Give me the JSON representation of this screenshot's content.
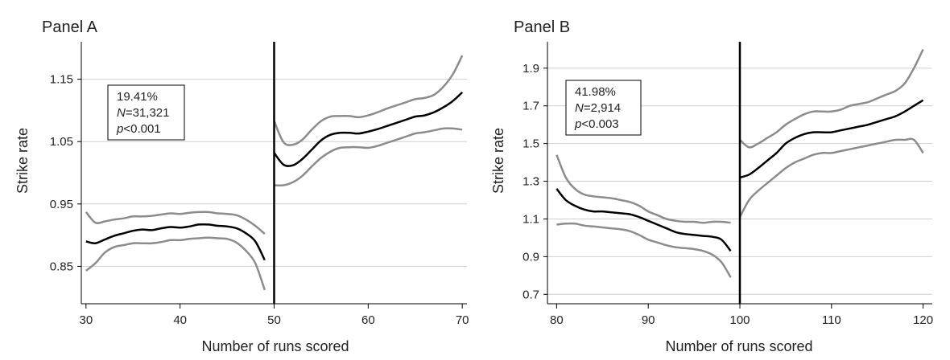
{
  "chart_data": [
    {
      "type": "line",
      "title": "Panel A",
      "xlabel": "Number of runs scored",
      "ylabel": "Strike rate",
      "xlim": [
        29.5,
        70.5
      ],
      "ylim": [
        0.79,
        1.21
      ],
      "xticks": [
        30,
        40,
        50,
        60,
        70
      ],
      "yticks": [
        0.85,
        0.95,
        1.05,
        1.15
      ],
      "ytick_labels": [
        "0.85",
        "0.95",
        "1.05",
        "1.15"
      ],
      "grid": "horizontal",
      "threshold": 50,
      "stats": {
        "estimate": "19.41%",
        "n_label": "N",
        "n_value": "=31,321",
        "p_label": "p",
        "p_value": "<0.001"
      },
      "colors": {
        "estimate": "#000000",
        "bounds": "#8c8c8c",
        "grid": "#cfcfcf"
      },
      "segments": [
        {
          "estimate": [
            [
              30,
              0.89
            ],
            [
              31,
              0.887
            ],
            [
              32,
              0.893
            ],
            [
              33,
              0.899
            ],
            [
              34,
              0.903
            ],
            [
              35,
              0.907
            ],
            [
              36,
              0.909
            ],
            [
              37,
              0.908
            ],
            [
              38,
              0.911
            ],
            [
              39,
              0.913
            ],
            [
              40,
              0.912
            ],
            [
              41,
              0.914
            ],
            [
              42,
              0.917
            ],
            [
              43,
              0.917
            ],
            [
              44,
              0.915
            ],
            [
              45,
              0.914
            ],
            [
              46,
              0.911
            ],
            [
              47,
              0.903
            ],
            [
              48,
              0.89
            ],
            [
              49,
              0.86
            ]
          ],
          "upper": [
            [
              30,
              0.937
            ],
            [
              31,
              0.92
            ],
            [
              32,
              0.922
            ],
            [
              33,
              0.925
            ],
            [
              34,
              0.927
            ],
            [
              35,
              0.93
            ],
            [
              36,
              0.93
            ],
            [
              37,
              0.931
            ],
            [
              38,
              0.933
            ],
            [
              39,
              0.935
            ],
            [
              40,
              0.934
            ],
            [
              41,
              0.936
            ],
            [
              42,
              0.937
            ],
            [
              43,
              0.937
            ],
            [
              44,
              0.935
            ],
            [
              45,
              0.934
            ],
            [
              46,
              0.932
            ],
            [
              47,
              0.925
            ],
            [
              48,
              0.915
            ],
            [
              49,
              0.902
            ]
          ],
          "lower": [
            [
              30,
              0.843
            ],
            [
              31,
              0.855
            ],
            [
              32,
              0.872
            ],
            [
              33,
              0.881
            ],
            [
              34,
              0.884
            ],
            [
              35,
              0.887
            ],
            [
              36,
              0.887
            ],
            [
              37,
              0.887
            ],
            [
              38,
              0.889
            ],
            [
              39,
              0.892
            ],
            [
              40,
              0.892
            ],
            [
              41,
              0.894
            ],
            [
              42,
              0.895
            ],
            [
              43,
              0.896
            ],
            [
              44,
              0.895
            ],
            [
              45,
              0.894
            ],
            [
              46,
              0.888
            ],
            [
              47,
              0.875
            ],
            [
              48,
              0.855
            ],
            [
              49,
              0.812
            ]
          ]
        },
        {
          "estimate": [
            [
              50,
              1.032
            ],
            [
              51,
              1.013
            ],
            [
              52,
              1.012
            ],
            [
              53,
              1.022
            ],
            [
              54,
              1.037
            ],
            [
              55,
              1.052
            ],
            [
              56,
              1.061
            ],
            [
              57,
              1.064
            ],
            [
              58,
              1.064
            ],
            [
              59,
              1.063
            ],
            [
              60,
              1.066
            ],
            [
              61,
              1.07
            ],
            [
              62,
              1.075
            ],
            [
              63,
              1.08
            ],
            [
              64,
              1.085
            ],
            [
              65,
              1.09
            ],
            [
              66,
              1.092
            ],
            [
              67,
              1.097
            ],
            [
              68,
              1.105
            ],
            [
              69,
              1.115
            ],
            [
              70,
              1.129
            ]
          ],
          "upper": [
            [
              50,
              1.083
            ],
            [
              51,
              1.049
            ],
            [
              52,
              1.045
            ],
            [
              53,
              1.053
            ],
            [
              54,
              1.069
            ],
            [
              55,
              1.083
            ],
            [
              56,
              1.09
            ],
            [
              57,
              1.091
            ],
            [
              58,
              1.091
            ],
            [
              59,
              1.089
            ],
            [
              60,
              1.092
            ],
            [
              61,
              1.097
            ],
            [
              62,
              1.103
            ],
            [
              63,
              1.108
            ],
            [
              64,
              1.113
            ],
            [
              65,
              1.118
            ],
            [
              66,
              1.12
            ],
            [
              67,
              1.125
            ],
            [
              68,
              1.138
            ],
            [
              69,
              1.158
            ],
            [
              70,
              1.188
            ]
          ],
          "lower": [
            [
              50,
              0.98
            ],
            [
              51,
              0.98
            ],
            [
              52,
              0.985
            ],
            [
              53,
              0.995
            ],
            [
              54,
              1.01
            ],
            [
              55,
              1.024
            ],
            [
              56,
              1.034
            ],
            [
              57,
              1.04
            ],
            [
              58,
              1.041
            ],
            [
              59,
              1.041
            ],
            [
              60,
              1.04
            ],
            [
              61,
              1.043
            ],
            [
              62,
              1.048
            ],
            [
              63,
              1.053
            ],
            [
              64,
              1.058
            ],
            [
              65,
              1.063
            ],
            [
              66,
              1.065
            ],
            [
              67,
              1.068
            ],
            [
              68,
              1.071
            ],
            [
              69,
              1.071
            ],
            [
              70,
              1.069
            ]
          ]
        }
      ]
    },
    {
      "type": "line",
      "title": "Panel B",
      "xlabel": "Number of runs scored",
      "ylabel": "Strike rate",
      "xlim": [
        79,
        121
      ],
      "ylim": [
        0.65,
        2.04
      ],
      "xticks": [
        80,
        90,
        100,
        110,
        120
      ],
      "yticks": [
        0.7,
        0.9,
        1.1,
        1.3,
        1.5,
        1.7,
        1.9
      ],
      "ytick_labels": [
        "0.7",
        "0.9",
        "1.1",
        "1.3",
        "1.5",
        "1.7",
        "1.9"
      ],
      "grid": "horizontal",
      "threshold": 100,
      "stats": {
        "estimate": "41.98%",
        "n_label": "N",
        "n_value": "=2,914",
        "p_label": "p",
        "p_value": "<0.003"
      },
      "colors": {
        "estimate": "#000000",
        "bounds": "#8c8c8c",
        "grid": "#cfcfcf"
      },
      "segments": [
        {
          "estimate": [
            [
              80,
              1.26
            ],
            [
              81,
              1.2
            ],
            [
              82,
              1.17
            ],
            [
              83,
              1.15
            ],
            [
              84,
              1.14
            ],
            [
              85,
              1.14
            ],
            [
              86,
              1.135
            ],
            [
              87,
              1.13
            ],
            [
              88,
              1.125
            ],
            [
              89,
              1.11
            ],
            [
              90,
              1.09
            ],
            [
              91,
              1.07
            ],
            [
              92,
              1.05
            ],
            [
              93,
              1.03
            ],
            [
              94,
              1.02
            ],
            [
              95,
              1.015
            ],
            [
              96,
              1.01
            ],
            [
              97,
              1.005
            ],
            [
              98,
              0.99
            ],
            [
              99,
              0.93
            ]
          ],
          "upper": [
            [
              80,
              1.44
            ],
            [
              81,
              1.32
            ],
            [
              82,
              1.26
            ],
            [
              83,
              1.23
            ],
            [
              84,
              1.22
            ],
            [
              85,
              1.215
            ],
            [
              86,
              1.21
            ],
            [
              87,
              1.2
            ],
            [
              88,
              1.19
            ],
            [
              89,
              1.17
            ],
            [
              90,
              1.14
            ],
            [
              91,
              1.12
            ],
            [
              92,
              1.1
            ],
            [
              93,
              1.09
            ],
            [
              94,
              1.085
            ],
            [
              95,
              1.085
            ],
            [
              96,
              1.08
            ],
            [
              97,
              1.085
            ],
            [
              98,
              1.085
            ],
            [
              99,
              1.08
            ]
          ],
          "lower": [
            [
              80,
              1.07
            ],
            [
              81,
              1.075
            ],
            [
              82,
              1.075
            ],
            [
              83,
              1.065
            ],
            [
              84,
              1.06
            ],
            [
              85,
              1.055
            ],
            [
              86,
              1.05
            ],
            [
              87,
              1.045
            ],
            [
              88,
              1.035
            ],
            [
              89,
              1.015
            ],
            [
              90,
              0.99
            ],
            [
              91,
              0.975
            ],
            [
              92,
              0.96
            ],
            [
              93,
              0.95
            ],
            [
              94,
              0.945
            ],
            [
              95,
              0.94
            ],
            [
              96,
              0.93
            ],
            [
              97,
              0.91
            ],
            [
              98,
              0.87
            ],
            [
              99,
              0.79
            ]
          ]
        },
        {
          "estimate": [
            [
              100,
              1.32
            ],
            [
              101,
              1.335
            ],
            [
              102,
              1.37
            ],
            [
              103,
              1.41
            ],
            [
              104,
              1.45
            ],
            [
              105,
              1.5
            ],
            [
              106,
              1.53
            ],
            [
              107,
              1.55
            ],
            [
              108,
              1.56
            ],
            [
              109,
              1.56
            ],
            [
              110,
              1.56
            ],
            [
              111,
              1.57
            ],
            [
              112,
              1.58
            ],
            [
              113,
              1.59
            ],
            [
              114,
              1.6
            ],
            [
              115,
              1.615
            ],
            [
              116,
              1.63
            ],
            [
              117,
              1.645
            ],
            [
              118,
              1.67
            ],
            [
              119,
              1.7
            ],
            [
              120,
              1.73
            ]
          ],
          "upper": [
            [
              100,
              1.52
            ],
            [
              101,
              1.48
            ],
            [
              102,
              1.5
            ],
            [
              103,
              1.53
            ],
            [
              104,
              1.56
            ],
            [
              105,
              1.6
            ],
            [
              106,
              1.63
            ],
            [
              107,
              1.655
            ],
            [
              108,
              1.67
            ],
            [
              109,
              1.67
            ],
            [
              110,
              1.67
            ],
            [
              111,
              1.68
            ],
            [
              112,
              1.7
            ],
            [
              113,
              1.71
            ],
            [
              114,
              1.72
            ],
            [
              115,
              1.74
            ],
            [
              116,
              1.76
            ],
            [
              117,
              1.78
            ],
            [
              118,
              1.82
            ],
            [
              119,
              1.9
            ],
            [
              120,
              2.0
            ]
          ],
          "lower": [
            [
              100,
              1.11
            ],
            [
              101,
              1.2
            ],
            [
              102,
              1.25
            ],
            [
              103,
              1.29
            ],
            [
              104,
              1.33
            ],
            [
              105,
              1.37
            ],
            [
              106,
              1.4
            ],
            [
              107,
              1.42
            ],
            [
              108,
              1.44
            ],
            [
              109,
              1.45
            ],
            [
              110,
              1.45
            ],
            [
              111,
              1.46
            ],
            [
              112,
              1.47
            ],
            [
              113,
              1.48
            ],
            [
              114,
              1.49
            ],
            [
              115,
              1.5
            ],
            [
              116,
              1.51
            ],
            [
              117,
              1.52
            ],
            [
              118,
              1.52
            ],
            [
              119,
              1.52
            ],
            [
              120,
              1.45
            ]
          ]
        }
      ]
    }
  ]
}
